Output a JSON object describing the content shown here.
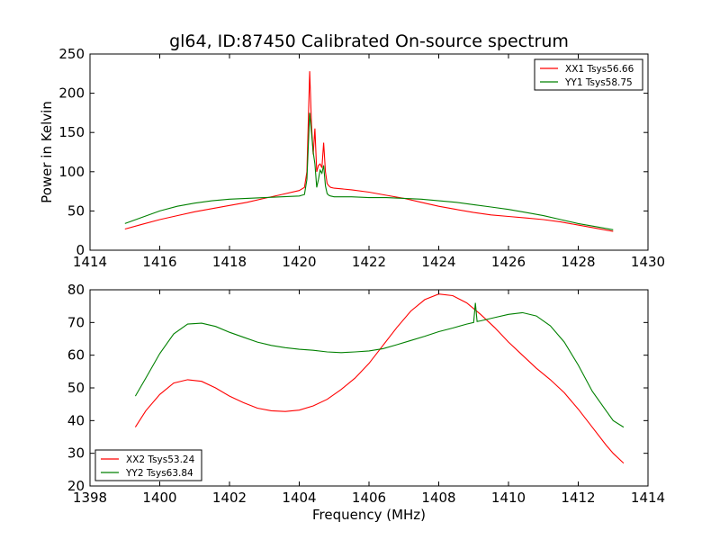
{
  "figure": {
    "title": "gl64, ID:87450 Calibrated On-source spectrum",
    "shared_xlabel": "Frequency (MHz)"
  },
  "chart_data": [
    {
      "type": "line",
      "title": "gl64, ID:87450 Calibrated On-source spectrum",
      "xlabel": "",
      "ylabel": "Power in Kelvin",
      "xlim": [
        1414,
        1430
      ],
      "ylim": [
        0,
        250
      ],
      "xticks": [
        1414,
        1416,
        1418,
        1420,
        1422,
        1424,
        1426,
        1428,
        1430
      ],
      "yticks": [
        0,
        50,
        100,
        150,
        200,
        250
      ],
      "grid": false,
      "legend": "top-right",
      "series": [
        {
          "name": "XX1 Tsys56.66",
          "color": "#ff0000",
          "x": [
            1415.0,
            1415.5,
            1416.0,
            1416.5,
            1417.0,
            1417.5,
            1418.0,
            1418.5,
            1419.0,
            1419.5,
            1420.0,
            1420.15,
            1420.22,
            1420.3,
            1420.35,
            1420.4,
            1420.45,
            1420.5,
            1420.55,
            1420.6,
            1420.65,
            1420.7,
            1420.75,
            1420.8,
            1420.85,
            1420.9,
            1421.0,
            1421.5,
            1422.0,
            1422.5,
            1423.0,
            1423.5,
            1424.0,
            1424.5,
            1425.0,
            1425.5,
            1426.0,
            1426.5,
            1427.0,
            1427.5,
            1428.0,
            1428.5,
            1429.0
          ],
          "y": [
            27,
            33,
            39,
            44,
            49,
            53,
            57,
            61,
            66,
            71,
            76,
            80,
            100,
            228,
            160,
            122,
            155,
            100,
            108,
            110,
            105,
            137,
            100,
            85,
            82,
            80,
            79,
            77,
            74,
            70,
            66,
            61,
            56,
            52,
            48,
            45,
            43,
            41,
            39,
            36,
            32,
            28,
            24
          ]
        },
        {
          "name": "YY1 Tsys58.75",
          "color": "#008000",
          "x": [
            1415.0,
            1415.5,
            1416.0,
            1416.5,
            1417.0,
            1417.5,
            1418.0,
            1418.5,
            1419.0,
            1419.5,
            1420.0,
            1420.15,
            1420.22,
            1420.3,
            1420.35,
            1420.4,
            1420.45,
            1420.5,
            1420.55,
            1420.6,
            1420.65,
            1420.7,
            1420.75,
            1420.8,
            1420.85,
            1420.9,
            1421.0,
            1421.5,
            1422.0,
            1422.5,
            1423.0,
            1423.5,
            1424.0,
            1424.5,
            1425.0,
            1425.5,
            1426.0,
            1426.5,
            1427.0,
            1427.5,
            1428.0,
            1428.5,
            1429.0
          ],
          "y": [
            34,
            42,
            50,
            56,
            60,
            63,
            65,
            66,
            67,
            68,
            69,
            71,
            90,
            175,
            150,
            125,
            110,
            80,
            90,
            102,
            98,
            108,
            82,
            72,
            70,
            69,
            68,
            68,
            67,
            67,
            66,
            65,
            63,
            61,
            58,
            55,
            52,
            48,
            44,
            39,
            34,
            30,
            26
          ]
        }
      ]
    },
    {
      "type": "line",
      "title": "",
      "xlabel": "Frequency (MHz)",
      "ylabel": "",
      "xlim": [
        1398,
        1414
      ],
      "ylim": [
        20,
        80
      ],
      "xticks": [
        1398,
        1400,
        1402,
        1404,
        1406,
        1408,
        1410,
        1412,
        1414
      ],
      "yticks": [
        20,
        30,
        40,
        50,
        60,
        70,
        80
      ],
      "grid": false,
      "legend": "bottom-left",
      "series": [
        {
          "name": "XX2 Tsys53.24",
          "color": "#ff0000",
          "x": [
            1399.3,
            1399.6,
            1400.0,
            1400.4,
            1400.8,
            1401.2,
            1401.6,
            1402.0,
            1402.4,
            1402.8,
            1403.2,
            1403.6,
            1404.0,
            1404.4,
            1404.8,
            1405.2,
            1405.6,
            1406.0,
            1406.4,
            1406.8,
            1407.2,
            1407.6,
            1408.0,
            1408.4,
            1408.8,
            1409.2,
            1409.6,
            1410.0,
            1410.4,
            1410.8,
            1411.2,
            1411.6,
            1412.0,
            1412.4,
            1412.8,
            1413.0,
            1413.3
          ],
          "y": [
            38,
            43,
            48,
            51.5,
            52.5,
            52,
            50,
            47.5,
            45.5,
            43.8,
            43,
            42.8,
            43.2,
            44.5,
            46.5,
            49.5,
            53,
            57.5,
            63,
            68.5,
            73.5,
            77,
            78.7,
            78.2,
            76,
            72.5,
            68.5,
            64,
            60,
            56,
            52.5,
            48.5,
            43.5,
            38,
            32.5,
            30,
            27
          ]
        },
        {
          "name": "YY2 Tsys63.84",
          "color": "#008000",
          "x": [
            1399.3,
            1399.6,
            1400.0,
            1400.4,
            1400.8,
            1401.2,
            1401.6,
            1402.0,
            1402.4,
            1402.8,
            1403.2,
            1403.6,
            1404.0,
            1404.4,
            1404.8,
            1405.2,
            1405.6,
            1406.0,
            1406.4,
            1406.8,
            1407.2,
            1407.6,
            1408.0,
            1408.4,
            1408.8,
            1409.0,
            1409.05,
            1409.1,
            1409.2,
            1409.6,
            1410.0,
            1410.4,
            1410.8,
            1411.2,
            1411.6,
            1412.0,
            1412.4,
            1412.8,
            1413.0,
            1413.3
          ],
          "y": [
            47.5,
            53,
            60.5,
            66.5,
            69.5,
            69.8,
            68.8,
            67,
            65.5,
            64,
            63,
            62.3,
            61.8,
            61.5,
            61,
            60.8,
            61,
            61.3,
            62,
            63.2,
            64.5,
            65.8,
            67.2,
            68.3,
            69.5,
            70,
            76,
            70.3,
            70.5,
            71.5,
            72.5,
            73,
            72,
            69,
            64,
            57,
            49,
            43,
            40,
            38
          ]
        }
      ]
    }
  ]
}
